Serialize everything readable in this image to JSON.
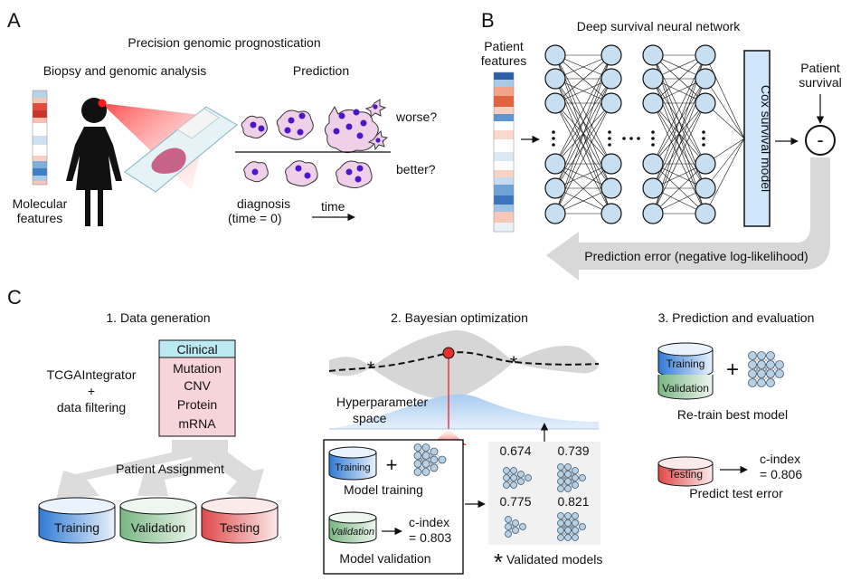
{
  "panels": {
    "a": {
      "letter": "A",
      "title": "Precision genomic prognostication",
      "left_heading": "Biopsy and genomic analysis",
      "right_heading": "Prediction",
      "molecular_label_1": "Molecular",
      "molecular_label_2": "features",
      "worse": "worse?",
      "better": "better?",
      "diagnosis_1": "diagnosis",
      "diagnosis_2": "(time = 0)",
      "time": "time"
    },
    "b": {
      "letter": "B",
      "title": "Deep survival neural network",
      "patient_features_1": "Patient",
      "patient_features_2": "features",
      "patient_survival_1": "Patient",
      "patient_survival_2": "survival",
      "cox_model": "Cox survival model",
      "minus": "-",
      "prediction_error": "Prediction error (negative log-likelihood)"
    },
    "c": {
      "letter": "C",
      "step1": "1. Data generation",
      "step2": "2. Bayesian optimization",
      "step3": "3. Prediction and evaluation",
      "integrator_1": "TCGAIntegrator",
      "integrator_2": "+",
      "integrator_3": "data filtering",
      "data_table": [
        "Clinical",
        "Mutation",
        "CNV",
        "Protein",
        "mRNA"
      ],
      "patient_assignment": "Patient Assignment",
      "training": "Training",
      "validation": "Validation",
      "testing": "Testing",
      "hyperparameter_1": "Hyperparameter",
      "hyperparameter_2": "space",
      "model_training": "Model training",
      "model_validation": "Model validation",
      "cindex_label": "c-index",
      "cindex_val_b": "= 0.803",
      "model_scores": [
        "0.674",
        "0.739",
        "0.775",
        "0.821"
      ],
      "validated_models": "Validated models",
      "retrain": "Re-train best model",
      "cindex_test": "= 0.806",
      "predict_test": "Predict test error",
      "plus": "+"
    }
  },
  "colors": {
    "training_blue": "#4f8fd6",
    "validation_green": "#7fb88a",
    "testing_red": "#e35f5f",
    "clinical_cyan": "#bde9f3",
    "omics_pink": "#f6d4d9",
    "cox_blue": "#cfe6fb",
    "node_blue": "#c8dff2",
    "cell_purple": "#4b16c9",
    "cell_pink": "#efd0e8"
  }
}
